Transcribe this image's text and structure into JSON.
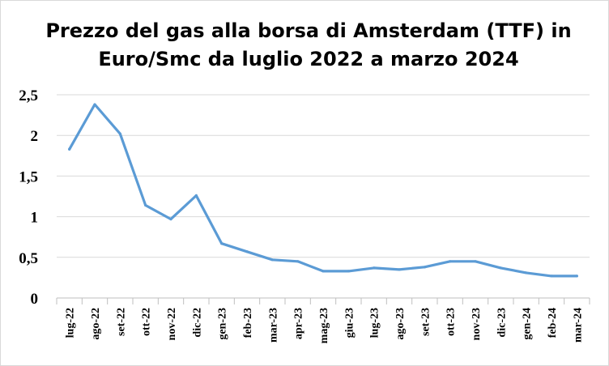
{
  "chart_data": {
    "type": "line",
    "title_line1": "Prezzo del gas alla borsa di Amsterdam (TTF) in",
    "title_line2": "Euro/Smc da luglio 2022 a marzo 2024",
    "categories": [
      "lug-22",
      "ago-22",
      "set-22",
      "ott-22",
      "nov-22",
      "dic-22",
      "gen-23",
      "feb-23",
      "mar-23",
      "apr-23",
      "mag-23",
      "giu-23",
      "lug-23",
      "ago-23",
      "set-23",
      "ott-23",
      "nov-23",
      "dic-23",
      "gen-24",
      "feb-24",
      "mar-24"
    ],
    "values": [
      1.83,
      2.38,
      2.02,
      1.14,
      0.97,
      1.26,
      0.67,
      0.57,
      0.47,
      0.45,
      0.33,
      0.33,
      0.37,
      0.35,
      0.38,
      0.45,
      0.45,
      0.37,
      0.31,
      0.27,
      0.27
    ],
    "y_ticks": [
      "0",
      "0,5",
      "1",
      "1,5",
      "2",
      "2,5"
    ],
    "y_tick_values": [
      0,
      0.5,
      1,
      1.5,
      2,
      2.5
    ],
    "ylim": [
      0,
      2.5
    ],
    "xlabel": "",
    "ylabel": "",
    "grid": true,
    "line_color": "#5b9bd5",
    "grid_color": "#d9d9d9"
  }
}
